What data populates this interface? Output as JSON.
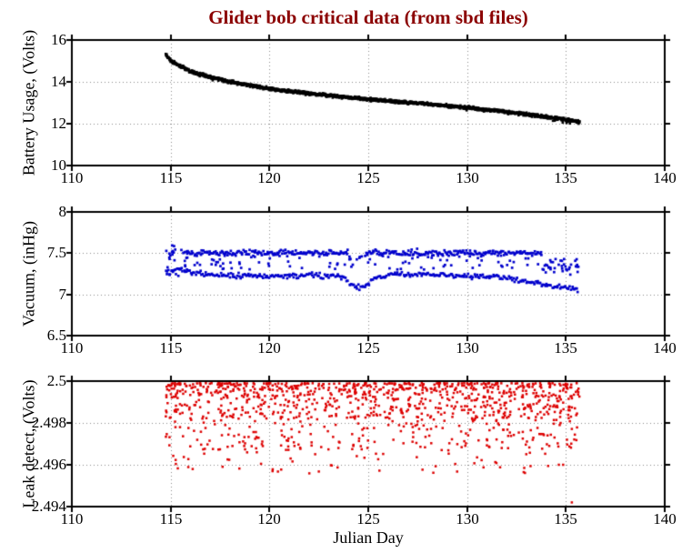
{
  "figure": {
    "title": "Glider bob critical data (from sbd files)",
    "title_color": "#8B0000",
    "xlabel": "Julian Day",
    "background": "#FFFFFF",
    "axis_color": "#000000",
    "grid_color": "#8a8a8a"
  },
  "chart_data": [
    {
      "type": "scatter",
      "ylabel": "Battery Usage, (Volts)",
      "marker_color": "#000000",
      "xlim": [
        110,
        140
      ],
      "ylim": [
        10,
        16
      ],
      "xticks": [
        110,
        115,
        120,
        125,
        130,
        135,
        140
      ],
      "xtick_labels": [
        "110",
        "115",
        "120",
        "125",
        "130",
        "135",
        "140"
      ],
      "yticks": [
        10,
        12,
        14,
        16
      ],
      "ytick_labels": [
        "10",
        "12",
        "14",
        "16"
      ],
      "grid": "dotted",
      "data_x_range": [
        114.75,
        135.7
      ],
      "n_points": 1600,
      "noise_sd": 0.035,
      "trend": [
        [
          114.75,
          15.3
        ],
        [
          115.0,
          15.02
        ],
        [
          115.3,
          14.85
        ],
        [
          115.7,
          14.65
        ],
        [
          116.2,
          14.45
        ],
        [
          117,
          14.22
        ],
        [
          118,
          14.0
        ],
        [
          119,
          13.83
        ],
        [
          120,
          13.67
        ],
        [
          121,
          13.55
        ],
        [
          122,
          13.45
        ],
        [
          123,
          13.35
        ],
        [
          124,
          13.26
        ],
        [
          125,
          13.17
        ],
        [
          126,
          13.09
        ],
        [
          127,
          13.01
        ],
        [
          128,
          12.94
        ],
        [
          129,
          12.86
        ],
        [
          130,
          12.77
        ],
        [
          131,
          12.67
        ],
        [
          132,
          12.56
        ],
        [
          133,
          12.45
        ],
        [
          134,
          12.33
        ],
        [
          135,
          12.2
        ],
        [
          135.7,
          12.1
        ]
      ]
    },
    {
      "type": "scatter",
      "ylabel": "Vacuum, (inHg)",
      "marker_color": "#0000CC",
      "xlim": [
        110,
        140
      ],
      "ylim": [
        6.5,
        8
      ],
      "xticks": [
        110,
        115,
        120,
        125,
        130,
        135,
        140
      ],
      "xtick_labels": [
        "110",
        "115",
        "120",
        "125",
        "130",
        "135",
        "140"
      ],
      "yticks": [
        6.5,
        7,
        7.5,
        8
      ],
      "ytick_labels": [
        "6.5",
        "7",
        "7.5",
        "8"
      ],
      "grid": "dotted",
      "data_x_range": [
        114.75,
        135.7
      ],
      "bands": [
        {
          "name": "upper-band",
          "trend": [
            [
              115.8,
              7.5
            ],
            [
              133.8,
              7.5
            ]
          ],
          "noise_sd": 0.018,
          "n_points": 340,
          "gap": {
            "x": [
              124.0,
              124.9
            ],
            "offset": -0.07,
            "keep": 0.45
          }
        },
        {
          "name": "lower-band",
          "trend": [
            [
              114.75,
              7.28
            ],
            [
              115.4,
              7.31
            ],
            [
              116,
              7.27
            ],
            [
              117,
              7.24
            ],
            [
              118,
              7.23
            ],
            [
              120,
              7.22
            ],
            [
              122,
              7.23
            ],
            [
              123.7,
              7.22
            ],
            [
              124.3,
              7.1
            ],
            [
              124.8,
              7.09
            ],
            [
              125.3,
              7.19
            ],
            [
              126,
              7.24
            ],
            [
              127,
              7.25
            ],
            [
              129,
              7.23
            ],
            [
              131,
              7.22
            ],
            [
              132,
              7.2
            ],
            [
              133,
              7.15
            ],
            [
              134,
              7.12
            ],
            [
              134.8,
              7.08
            ],
            [
              135.65,
              7.05
            ]
          ],
          "noise_sd": 0.016,
          "n_points": 350
        }
      ],
      "scatter_boxes": [
        {
          "name": "start-scatter",
          "x": [
            114.75,
            115.85
          ],
          "y": [
            7.22,
            7.6
          ],
          "n_points": 30
        },
        {
          "name": "mid-scatter",
          "x": [
            116,
            134
          ],
          "y": [
            7.3,
            7.47
          ],
          "n_points": 85
        },
        {
          "name": "end-scatter",
          "x": [
            133.8,
            135.65
          ],
          "y": [
            7.24,
            7.44
          ],
          "n_points": 38
        }
      ]
    },
    {
      "type": "scatter",
      "ylabel": "Leak detect, (Volts)",
      "marker_color": "#DD0000",
      "xlim": [
        110,
        140
      ],
      "ylim": [
        2.494,
        2.5
      ],
      "xticks": [
        110,
        115,
        120,
        125,
        130,
        135,
        140
      ],
      "xtick_labels": [
        "110",
        "115",
        "120",
        "125",
        "130",
        "135",
        "140"
      ],
      "yticks": [
        2.494,
        2.496,
        2.498,
        2.5
      ],
      "ytick_labels": [
        "2.494",
        "2.496",
        "2.498",
        "2.5"
      ],
      "grid": "dotted",
      "data_x_range": [
        114.75,
        135.7
      ],
      "n_points": 1150,
      "clusters": [
        {
          "frac": 0.72,
          "y": [
            2.4982,
            2.4999
          ],
          "bias_top": true
        },
        {
          "frac": 0.21,
          "y": [
            2.4967,
            2.4985
          ],
          "bias_top": false
        },
        {
          "frac": 0.07,
          "y": [
            2.4955,
            2.4972
          ],
          "bias_top": false
        }
      ],
      "outliers": [
        [
          135.3,
          2.4942
        ]
      ]
    }
  ]
}
